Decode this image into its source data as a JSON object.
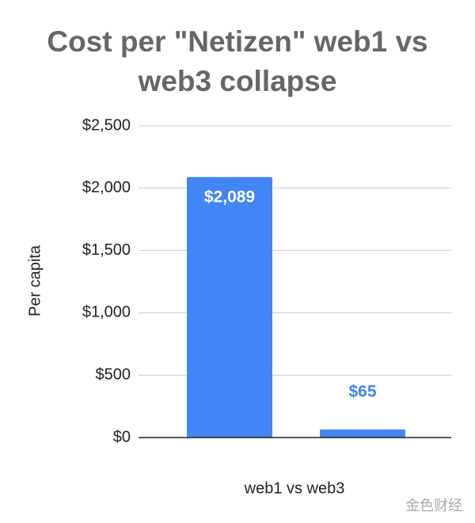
{
  "chart_data": {
    "type": "bar",
    "title": "Cost per \"Netizen\" web1 vs web3 collapse",
    "x_label": "web1 vs web3",
    "y_label": "Per capita",
    "categories": [
      null,
      null
    ],
    "values": [
      2089,
      65
    ],
    "value_labels": [
      "$2,089",
      "$65"
    ],
    "color": "#4285f4",
    "ylim": [
      0,
      2500
    ],
    "yticks": [
      {
        "value": 0,
        "label": "$0"
      },
      {
        "value": 500,
        "label": "$500"
      },
      {
        "value": 1000,
        "label": "$1,000"
      },
      {
        "value": 1500,
        "label": "$1,500"
      },
      {
        "value": 2000,
        "label": "$2,000"
      },
      {
        "value": 2500,
        "label": "$2,500"
      }
    ],
    "grid": true
  },
  "watermark": "金色财经"
}
